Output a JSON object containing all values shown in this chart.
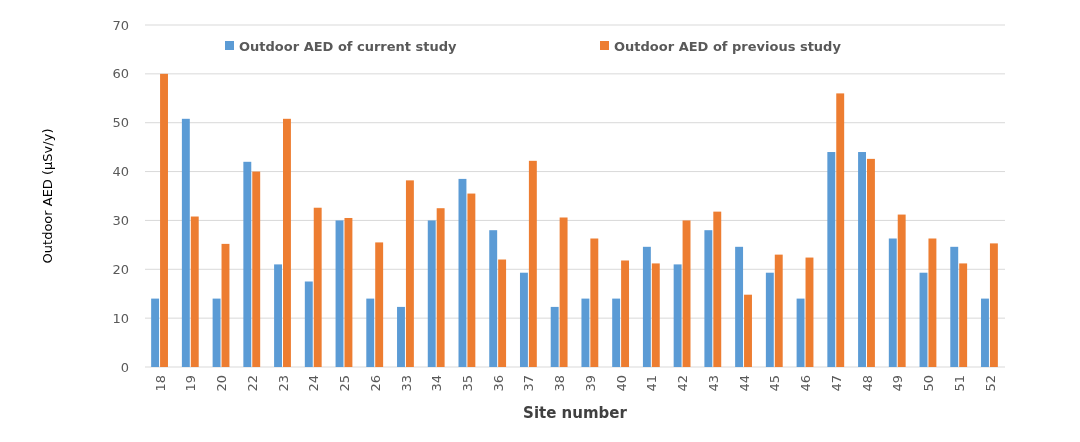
{
  "chart_data": {
    "type": "bar",
    "xlabel": "Site number",
    "ylabel": "Outdoor AED (µSv/y)",
    "categories": [
      "18",
      "19",
      "20",
      "22",
      "23",
      "24",
      "25",
      "26",
      "33",
      "34",
      "35",
      "36",
      "37",
      "38",
      "39",
      "40",
      "41",
      "42",
      "43",
      "44",
      "45",
      "46",
      "47",
      "48",
      "49",
      "50",
      "51",
      "52"
    ],
    "series": [
      {
        "name": "Outdoor AED of current study",
        "color": "#5b9bd5",
        "values": [
          14,
          50.8,
          14,
          42,
          21,
          17.5,
          30,
          14,
          12.3,
          30,
          38.5,
          28,
          19.3,
          12.3,
          14,
          14,
          24.6,
          21,
          28,
          24.6,
          19.3,
          14,
          44,
          44,
          26.3,
          19.3,
          24.6,
          14
        ]
      },
      {
        "name": "Outdoor AED of previous study",
        "color": "#ed7d31",
        "values": [
          60,
          30.8,
          25.2,
          40,
          50.8,
          32.6,
          30.5,
          25.5,
          38.2,
          32.5,
          35.5,
          22,
          42.2,
          30.6,
          26.3,
          21.8,
          21.2,
          30,
          31.8,
          14.8,
          23,
          22.4,
          56,
          42.6,
          31.2,
          26.3,
          21.2,
          25.3
        ]
      }
    ],
    "ylim": [
      0,
      70
    ],
    "yticks": [
      0,
      10,
      20,
      30,
      40,
      50,
      60,
      70
    ],
    "grid": "y",
    "legend": "top"
  }
}
